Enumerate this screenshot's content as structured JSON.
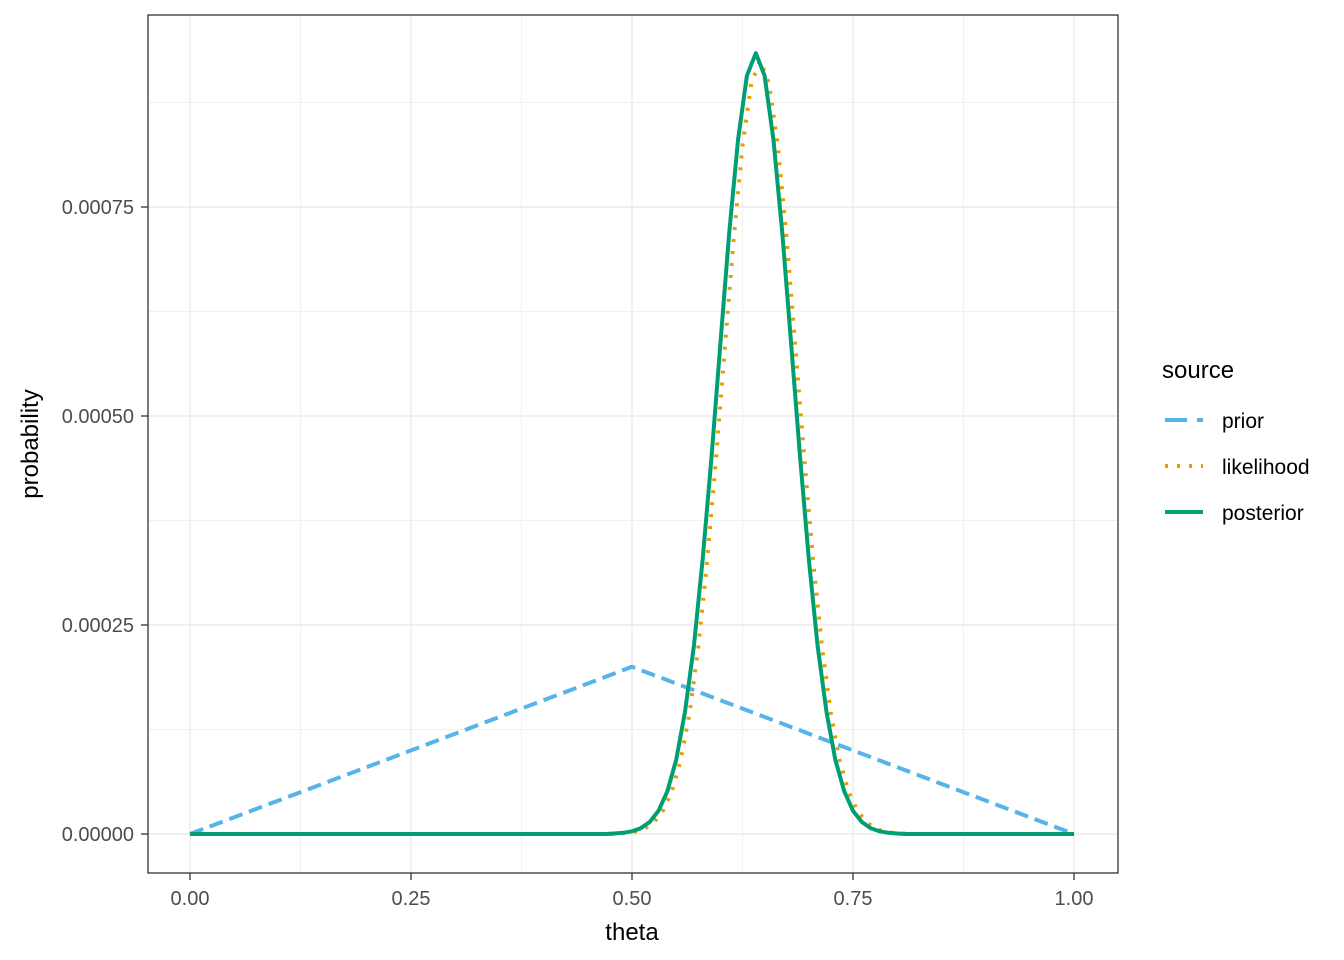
{
  "chart_data": {
    "type": "line",
    "title": "",
    "xlabel": "theta",
    "ylabel": "probability",
    "xlim": [
      0,
      1
    ],
    "ylim": [
      0,
      0.00095
    ],
    "x_ticks": [
      "0.00",
      "0.25",
      "0.50",
      "0.75",
      "1.00"
    ],
    "x_tick_values": [
      0,
      0.25,
      0.5,
      0.75,
      1
    ],
    "y_ticks": [
      "0.00000",
      "0.00025",
      "0.00050",
      "0.00075"
    ],
    "y_tick_values": [
      0,
      0.00025,
      0.0005,
      0.00075
    ],
    "grid": true,
    "legend": {
      "title": "source",
      "placement": "right"
    },
    "series": [
      {
        "name": "prior",
        "color": "#56B4E9",
        "linetype": "dashed",
        "x": [
          0,
          0.5,
          1
        ],
        "y": [
          0,
          0.0002,
          0
        ]
      },
      {
        "name": "likelihood",
        "color": "#E69F00",
        "linetype": "dotted",
        "x": [
          0,
          0.475,
          0.485,
          0.495,
          0.505,
          0.515,
          0.525,
          0.535,
          0.545,
          0.555,
          0.565,
          0.575,
          0.585,
          0.595,
          0.605,
          0.615,
          0.625,
          0.635,
          0.645,
          0.655,
          0.665,
          0.675,
          0.685,
          0.695,
          0.705,
          0.715,
          0.725,
          0.735,
          0.745,
          0.755,
          0.765,
          0.775,
          0.785,
          0.795,
          0.805,
          0.815,
          1
        ],
        "y": [
          0,
          0,
          6e-07,
          1.4e-06,
          3.1e-06,
          6.8e-06,
          1.42e-05,
          2.76e-05,
          5.07e-05,
          8.8e-05,
          0.000144,
          0.000223,
          0.000326,
          0.000448,
          0.000581,
          0.000712,
          0.000823,
          0.000898,
          0.000925,
          0.000898,
          0.000823,
          0.000712,
          0.000581,
          0.000448,
          0.000326,
          0.000223,
          0.000144,
          8.8e-05,
          5.07e-05,
          2.76e-05,
          1.42e-05,
          6.8e-06,
          3.1e-06,
          1.4e-06,
          6e-07,
          0,
          0
        ]
      },
      {
        "name": "posterior",
        "color": "#009E73",
        "linetype": "solid",
        "x": [
          0,
          0.47,
          0.48,
          0.49,
          0.5,
          0.51,
          0.52,
          0.53,
          0.54,
          0.55,
          0.56,
          0.57,
          0.58,
          0.59,
          0.6,
          0.61,
          0.62,
          0.63,
          0.64,
          0.65,
          0.66,
          0.67,
          0.68,
          0.69,
          0.7,
          0.71,
          0.72,
          0.73,
          0.74,
          0.75,
          0.76,
          0.77,
          0.78,
          0.79,
          0.8,
          0.81,
          1
        ],
        "y": [
          0,
          0,
          6e-07,
          1.4e-06,
          3.2e-06,
          6.9e-06,
          1.43e-05,
          2.78e-05,
          5.12e-05,
          8.89e-05,
          0.000146,
          0.000225,
          0.000329,
          0.000452,
          0.000587,
          0.000719,
          0.000831,
          0.000907,
          0.000934,
          0.000907,
          0.000831,
          0.000719,
          0.000587,
          0.000452,
          0.000329,
          0.000225,
          0.000146,
          8.89e-05,
          5.12e-05,
          2.78e-05,
          1.43e-05,
          6.9e-06,
          3.2e-06,
          1.4e-06,
          6e-07,
          0,
          0
        ]
      }
    ]
  }
}
